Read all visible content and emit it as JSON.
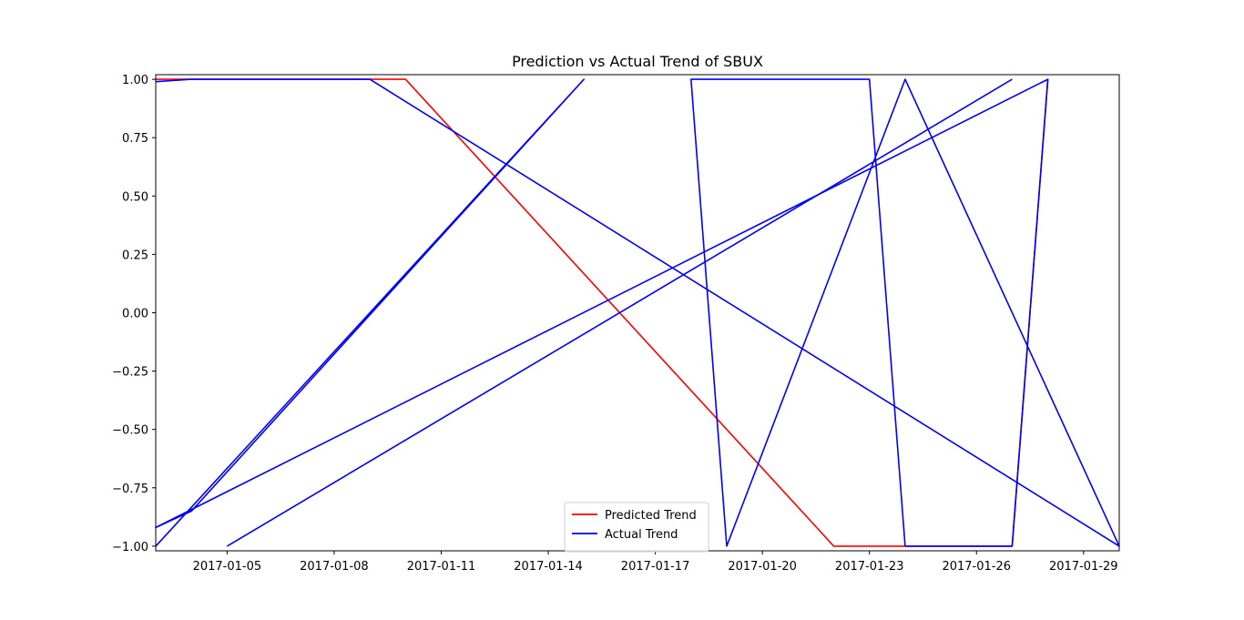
{
  "chart_data": {
    "type": "line",
    "title": "Prediction vs Actual Trend of SBUX",
    "xlabel": "",
    "ylabel": "",
    "x_axis": "date",
    "xlim": [
      "2017-01-03",
      "2017-01-30"
    ],
    "ylim": [
      -1.02,
      1.02
    ],
    "xticks": [
      "2017-01-05",
      "2017-01-08",
      "2017-01-11",
      "2017-01-14",
      "2017-01-17",
      "2017-01-20",
      "2017-01-23",
      "2017-01-26",
      "2017-01-29"
    ],
    "yticks": [
      1.0,
      0.75,
      0.5,
      0.25,
      0.0,
      -0.25,
      -0.5,
      -0.75,
      -1.0
    ],
    "ytick_labels": [
      "1.00",
      "0.75",
      "0.50",
      "0.25",
      "0.00",
      "−0.25",
      "−0.50",
      "−0.75",
      "−1.00"
    ],
    "grid": false,
    "legend_position": "lower-center",
    "series": [
      {
        "name": "Predicted Trend",
        "color": "#ff0000",
        "points": [
          [
            "2017-01-03",
            1
          ],
          [
            "2017-01-04",
            1
          ],
          [
            "2017-01-05",
            1
          ],
          [
            "2017-01-06",
            1
          ],
          [
            "2017-01-09",
            1
          ],
          [
            "2017-01-10",
            1
          ],
          [
            "2017-01-22",
            -1
          ],
          [
            "2017-01-23",
            -1
          ],
          [
            "2017-01-24",
            -1
          ],
          [
            "2017-01-27",
            -1
          ],
          [
            "2017-01-28",
            1
          ]
        ]
      },
      {
        "name": "Actual Trend",
        "color": "#0000ff",
        "points": [
          [
            "2017-01-03",
            0.99
          ],
          [
            "2017-01-04",
            1
          ],
          [
            "2017-01-09",
            1
          ],
          [
            "2017-01-30",
            -1
          ],
          [
            "2017-01-24",
            1
          ],
          [
            "2017-01-19",
            -1
          ],
          [
            "2017-01-18",
            1
          ],
          [
            "2017-01-23",
            1
          ],
          [
            "2017-01-24",
            -1
          ],
          [
            "2017-01-27",
            -1
          ],
          [
            "2017-01-28",
            1
          ],
          [
            "2017-01-03",
            -0.92
          ],
          [
            "2017-01-04",
            -0.85
          ],
          [
            "2017-01-15",
            1
          ],
          [
            "2017-01-03",
            -1
          ]
        ]
      },
      {
        "name": "Actual Trend",
        "color": "#0000ff",
        "points": [
          [
            "2017-01-05",
            -1
          ],
          [
            "2017-01-27",
            1
          ]
        ]
      }
    ]
  }
}
